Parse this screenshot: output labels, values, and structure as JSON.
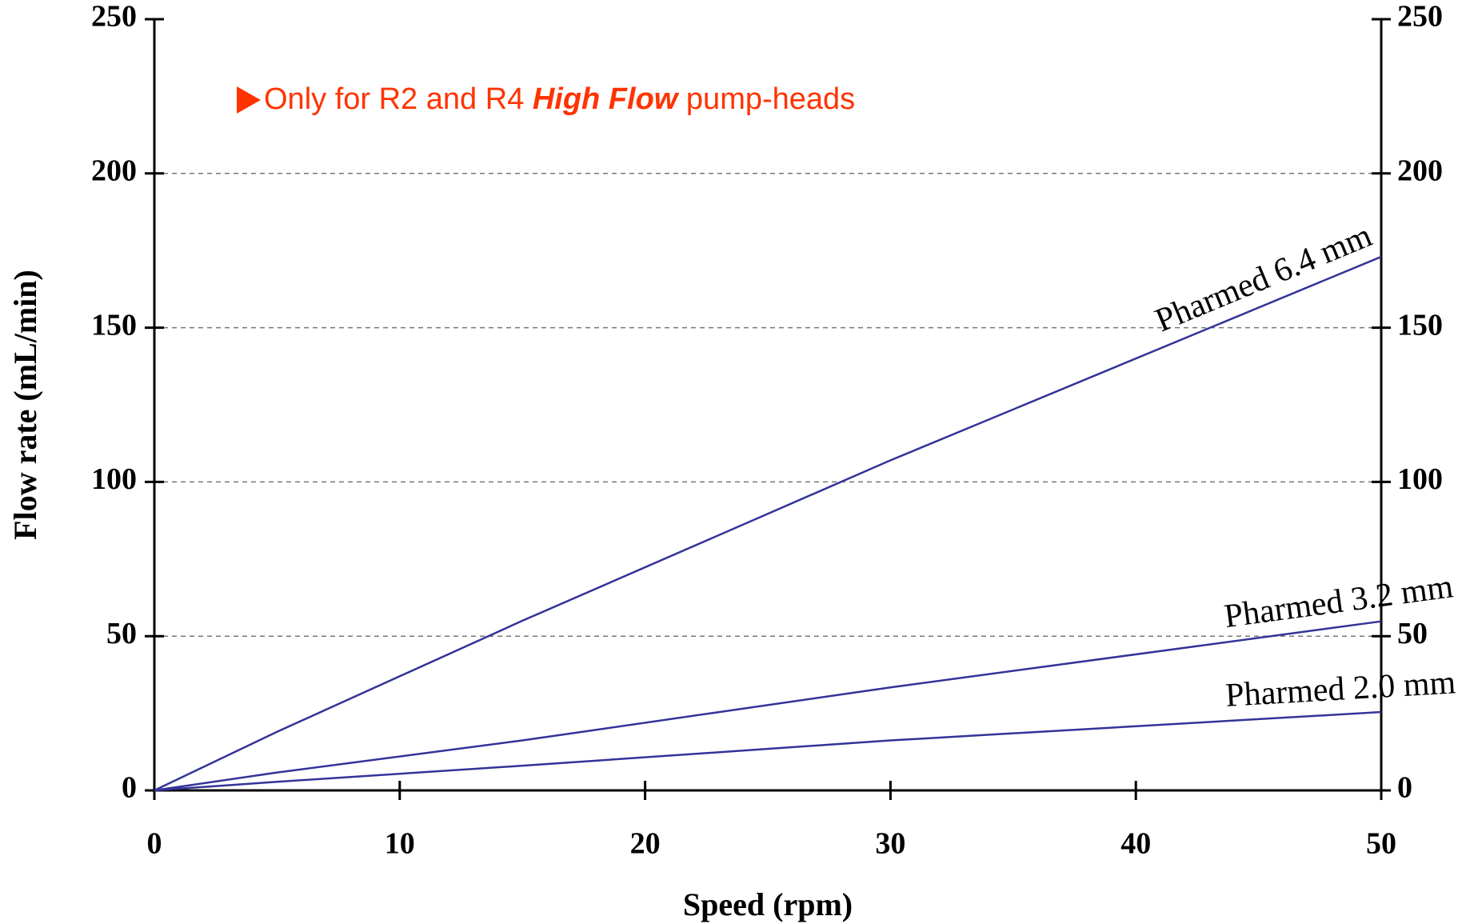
{
  "chart_data": {
    "type": "line",
    "annotation": [
      "Only for R2 and R4",
      "High Flow",
      "pump-heads"
    ],
    "xlabel": "Speed (rpm)",
    "ylabel": "Flow rate (mL/min)",
    "x": [
      0,
      5,
      15,
      30,
      50
    ],
    "series": [
      {
        "name": "Pharmed 6.4 mm",
        "color": "#333399",
        "values": [
          0,
          19,
          55,
          107,
          173
        ]
      },
      {
        "name": "Pharmed 3.2 mm",
        "color": "#333399",
        "values": [
          0,
          5.8,
          16.2,
          33.4,
          54.8
        ]
      },
      {
        "name": "Pharmed 2.0 mm",
        "color": "#333399",
        "values": [
          0,
          2.8,
          8.0,
          16.2,
          25.4
        ]
      }
    ],
    "xlim": [
      0,
      50
    ],
    "xticks": [
      0,
      10,
      20,
      30,
      40,
      50
    ],
    "ylim": [
      0,
      250
    ],
    "yticks": [
      0,
      50,
      100,
      150,
      200,
      250
    ],
    "y2lim": [
      0,
      250
    ],
    "y2ticks": [
      0,
      50,
      100,
      150,
      200,
      250
    ],
    "grid": true
  }
}
